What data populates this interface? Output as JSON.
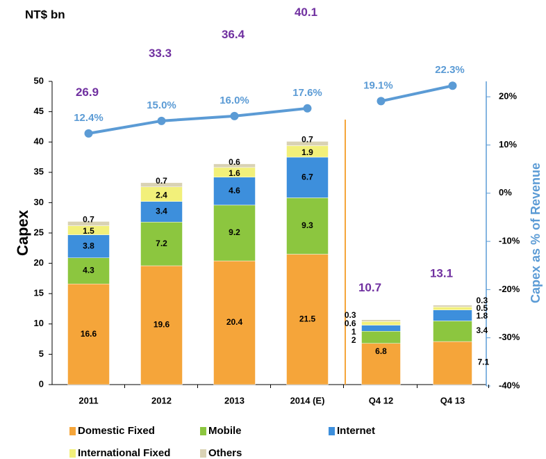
{
  "chart_data": {
    "type": "stacked-bar-line",
    "unit_label": "NT$ bn",
    "y_label": "Capex",
    "y2_label": "Capex as % of Revenue",
    "categories": [
      "2011",
      "2012",
      "2013",
      "2014 (E)",
      "Q4 12",
      "Q4 13"
    ],
    "series": [
      {
        "name": "Domestic Fixed",
        "color": "#f5a53a",
        "values": [
          16.6,
          19.6,
          20.4,
          21.5,
          6.8,
          7.1
        ]
      },
      {
        "name": "Mobile",
        "color": "#8cc63f",
        "values": [
          4.3,
          7.2,
          9.2,
          9.3,
          2.0,
          3.4
        ]
      },
      {
        "name": "Internet",
        "color": "#3d8fdc",
        "values": [
          3.8,
          3.4,
          4.6,
          6.7,
          1.0,
          1.8
        ]
      },
      {
        "name": "International Fixed",
        "color": "#f2f07a",
        "values": [
          1.5,
          2.4,
          1.6,
          1.9,
          0.6,
          0.5
        ]
      },
      {
        "name": "Others",
        "color": "#d9d2b4",
        "values": [
          0.7,
          0.7,
          0.6,
          0.7,
          0.3,
          0.3
        ]
      }
    ],
    "totals": [
      26.9,
      33.3,
      36.4,
      40.1,
      10.7,
      13.1
    ],
    "totals_color": "#7030a0",
    "line": {
      "axis": "y2",
      "color": "#5b9bd5",
      "values": [
        12.4,
        15.0,
        16.0,
        17.6,
        19.1,
        22.3
      ],
      "value_labels": [
        "12.4%",
        "15.0%",
        "16.0%",
        "17.6%",
        "19.1%",
        "22.3%"
      ]
    },
    "divider_after": 3,
    "divider_color": "#f5a53a",
    "ylim": [
      0,
      50
    ],
    "yticks": [
      0,
      5,
      10,
      15,
      20,
      25,
      30,
      35,
      40,
      45,
      50
    ],
    "y2lim": [
      -40,
      23.2
    ],
    "y2ticks": [
      {
        "value": -40,
        "label": "-40%"
      },
      {
        "value": -30,
        "label": "-30%"
      },
      {
        "value": -20,
        "label": "-20%"
      },
      {
        "value": -10,
        "label": "-10%"
      },
      {
        "value": 0,
        "label": "0%"
      },
      {
        "value": 10,
        "label": "10%"
      },
      {
        "value": 20,
        "label": "20%"
      }
    ]
  }
}
